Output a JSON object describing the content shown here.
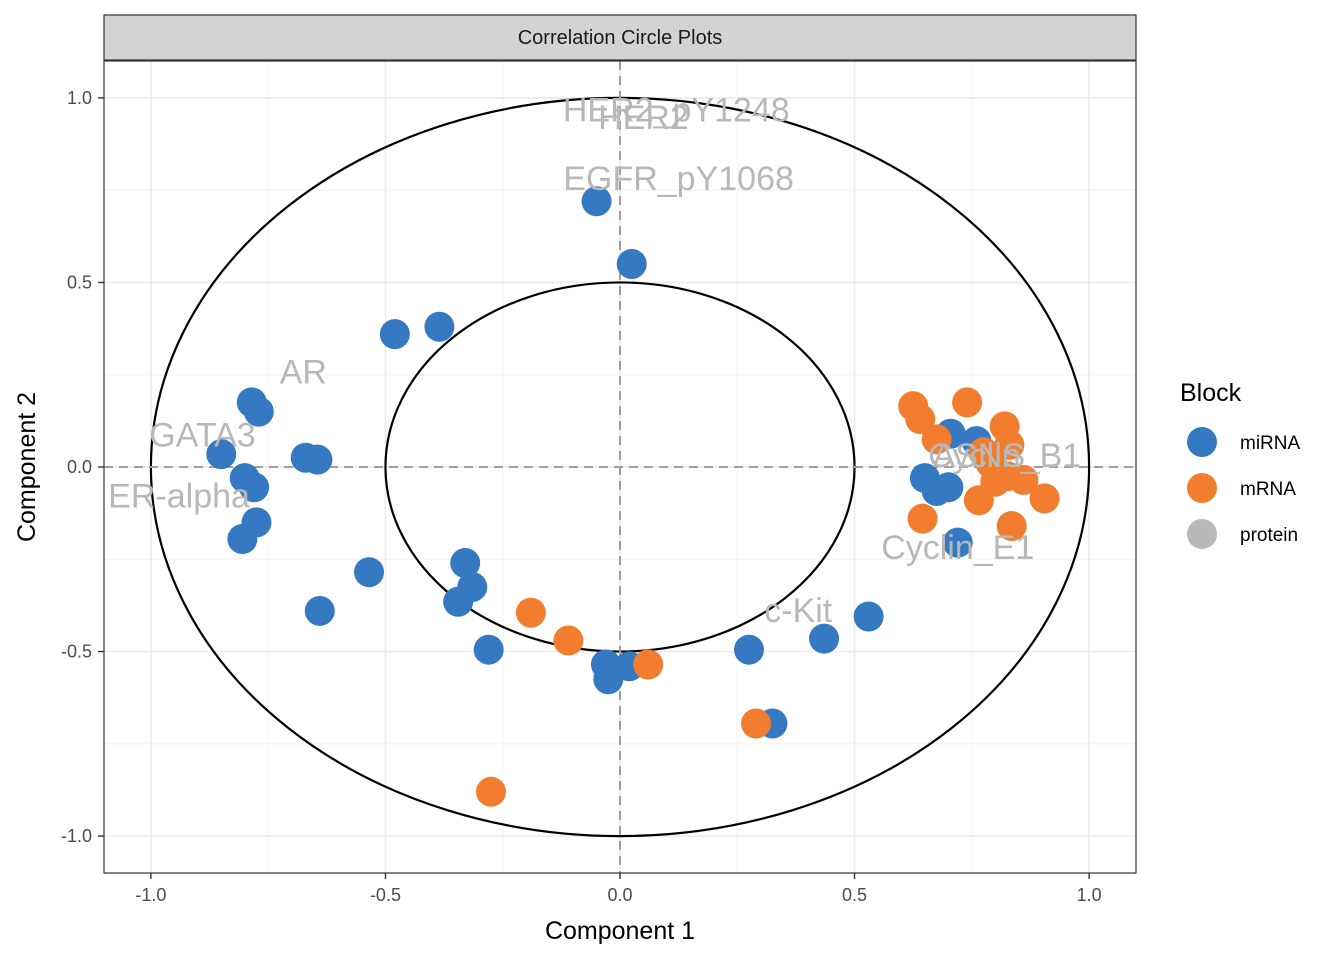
{
  "chart_data": {
    "type": "scatter",
    "title": "Correlation Circle Plots",
    "xlabel": "Component  1",
    "ylabel": "Component  2",
    "xlim": [
      -1.1,
      1.1
    ],
    "ylim": [
      -1.1,
      1.1
    ],
    "x_ticks": [
      -1.0,
      -0.5,
      0.0,
      0.5,
      1.0
    ],
    "y_ticks": [
      -1.0,
      -0.5,
      0.0,
      0.5,
      1.0
    ],
    "x_tick_labels": [
      "-1.0",
      "-0.5",
      "0.0",
      "0.5",
      "1.0"
    ],
    "y_tick_labels": [
      "-1.0",
      "-0.5",
      "0.0",
      "0.5",
      "1.0"
    ],
    "grid": true,
    "reference_lines": {
      "x": 0,
      "y": 0,
      "style": "dashed"
    },
    "circles": [
      0.5,
      1.0
    ],
    "legend": {
      "title": "Block",
      "placement": "right",
      "entries": [
        {
          "label": "miRNA",
          "color": "#3479C2"
        },
        {
          "label": "mRNA",
          "color": "#F27D2E"
        },
        {
          "label": "protein",
          "color": "#B8B8B8"
        }
      ]
    },
    "series": [
      {
        "name": "miRNA",
        "color": "#3479C2",
        "points": [
          [
            -0.05,
            0.72
          ],
          [
            0.025,
            0.55
          ],
          [
            -0.385,
            0.38
          ],
          [
            -0.48,
            0.36
          ],
          [
            -0.785,
            0.175
          ],
          [
            -0.77,
            0.15
          ],
          [
            -0.67,
            0.025
          ],
          [
            -0.645,
            0.02
          ],
          [
            -0.85,
            0.035
          ],
          [
            -0.8,
            -0.03
          ],
          [
            -0.78,
            -0.055
          ],
          [
            -0.775,
            -0.15
          ],
          [
            -0.805,
            -0.195
          ],
          [
            -0.535,
            -0.285
          ],
          [
            -0.64,
            -0.39
          ],
          [
            -0.33,
            -0.26
          ],
          [
            -0.315,
            -0.325
          ],
          [
            -0.345,
            -0.365
          ],
          [
            -0.28,
            -0.495
          ],
          [
            -0.03,
            -0.535
          ],
          [
            0.02,
            -0.54
          ],
          [
            -0.025,
            -0.575
          ],
          [
            0.275,
            -0.495
          ],
          [
            0.435,
            -0.465
          ],
          [
            0.53,
            -0.405
          ],
          [
            0.325,
            -0.695
          ],
          [
            0.705,
            0.09
          ],
          [
            0.76,
            0.07
          ],
          [
            0.65,
            -0.03
          ],
          [
            0.675,
            -0.065
          ],
          [
            0.7,
            -0.055
          ],
          [
            0.72,
            -0.205
          ]
        ]
      },
      {
        "name": "mRNA",
        "color": "#F27D2E",
        "points": [
          [
            0.625,
            0.165
          ],
          [
            0.64,
            0.13
          ],
          [
            0.74,
            0.175
          ],
          [
            0.675,
            0.075
          ],
          [
            0.82,
            0.11
          ],
          [
            0.83,
            0.06
          ],
          [
            0.775,
            0.04
          ],
          [
            0.79,
            0.01
          ],
          [
            0.8,
            -0.04
          ],
          [
            0.825,
            -0.025
          ],
          [
            0.86,
            -0.035
          ],
          [
            0.905,
            -0.085
          ],
          [
            0.765,
            -0.09
          ],
          [
            0.645,
            -0.14
          ],
          [
            0.835,
            -0.16
          ],
          [
            -0.19,
            -0.395
          ],
          [
            -0.11,
            -0.47
          ],
          [
            0.06,
            -0.535
          ],
          [
            0.29,
            -0.695
          ],
          [
            -0.275,
            -0.88
          ]
        ]
      },
      {
        "name": "protein",
        "color": "#B8B8B8",
        "points": []
      }
    ],
    "annotations": [
      {
        "text": "HER2_pY1248",
        "x": 0.12,
        "y": 0.96
      },
      {
        "text": "HER2",
        "x": 0.05,
        "y": 0.94
      },
      {
        "text": "EGFR_pY1068",
        "x": 0.125,
        "y": 0.775
      },
      {
        "text": "AR",
        "x": -0.675,
        "y": 0.25
      },
      {
        "text": "GATA3",
        "x": -0.89,
        "y": 0.08
      },
      {
        "text": "ER-alpha",
        "x": -0.94,
        "y": -0.085
      },
      {
        "text": "ASNS",
        "x": 0.765,
        "y": 0.025
      },
      {
        "text": "Cyclin_B1",
        "x": 0.82,
        "y": 0.025
      },
      {
        "text": "Cyclin_E1",
        "x": 0.72,
        "y": -0.225
      },
      {
        "text": "c-Kit",
        "x": 0.38,
        "y": -0.395
      }
    ]
  }
}
